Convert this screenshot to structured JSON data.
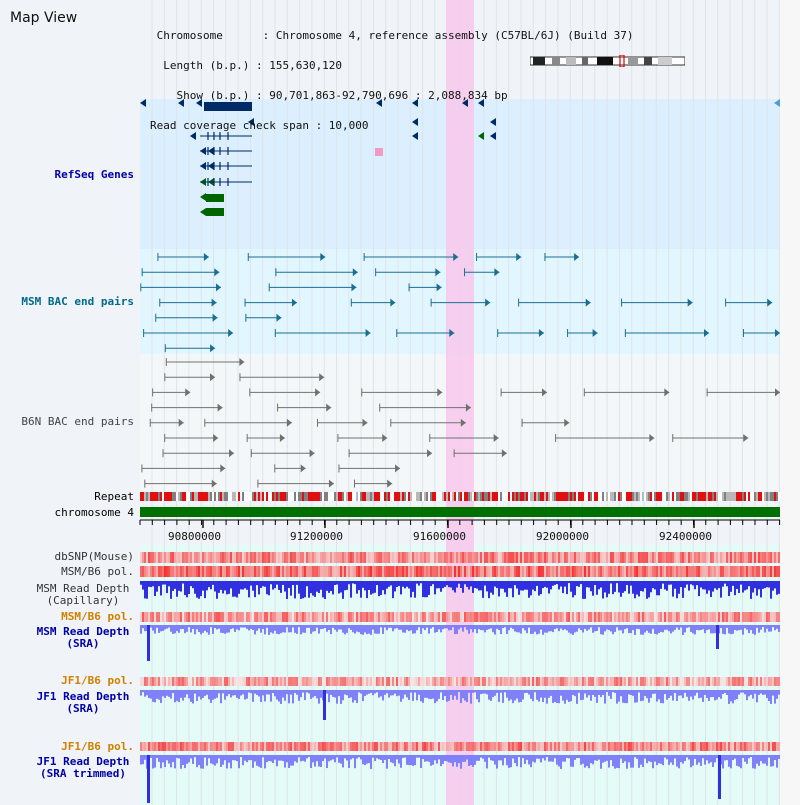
{
  "window": {
    "title": "Map View"
  },
  "header": {
    "lines": [
      " Chromosome      : Chromosome 4, reference assembly (C57BL/6J) (Build 37)",
      "  Length (b.p.) : 155,630,120",
      "    Show (b.p.) : 90,701,863-92,790,696 : 2,088,834 bp",
      "Read coverage check span : 10,000"
    ]
  },
  "ruler": {
    "ticks": [
      "90800000",
      "91200000",
      "91600000",
      "92000000",
      "92400000"
    ]
  },
  "tracks": {
    "refseq": {
      "label": "RefSeq Genes",
      "color": "#0000aa"
    },
    "msm_bac": {
      "label": "MSM BAC end pairs",
      "color": "#006a8a"
    },
    "b6n_bac": {
      "label": "B6N BAC end pairs",
      "color": "#444444"
    },
    "repeat": {
      "label": "Repeat",
      "color": "#000000"
    },
    "chromosome": {
      "label": "chromosome 4",
      "color": "#000000"
    },
    "dbsnp": {
      "label": "dbSNP(Mouse)",
      "color": "#333333"
    },
    "msm_b6_pol1": {
      "label": "MSM/B6 pol.",
      "color": "#333333"
    },
    "msm_depth_cap": {
      "label": "MSM Read Depth\n(Capillary)",
      "color": "#333333"
    },
    "msm_b6_pol2": {
      "label": "MSM/B6 pol.",
      "color": "#d08000"
    },
    "msm_depth_sra": {
      "label": "MSM Read Depth\n(SRA)",
      "color": "#0000aa"
    },
    "jf1_b6_pol1": {
      "label": "JF1/B6 pol.",
      "color": "#d08000"
    },
    "jf1_depth_sra": {
      "label": "JF1 Read Depth\n(SRA)",
      "color": "#0000aa"
    },
    "jf1_b6_pol2": {
      "label": "JF1/B6 pol.",
      "color": "#d08000"
    },
    "jf1_depth_trim": {
      "label": "JF1 Read Depth\n(SRA trimmed)",
      "color": "#0000aa"
    }
  },
  "colors": {
    "refseq_bg": "#dcefff",
    "msm_bg": "#e2f6ff",
    "depth_bg": "#e4fbf8",
    "highlight": "#f8c8ec",
    "gene_green": "#006400",
    "gene_navy": "#002a66",
    "bac_teal": "#1a6e90",
    "bac_gray": "#707070",
    "chromosome_bar": "#007000",
    "depth_blue": "#3030e0",
    "depth_light": "#8080f8"
  },
  "icons": {
    "ideogram": "chromosome-ideogram-icon"
  }
}
